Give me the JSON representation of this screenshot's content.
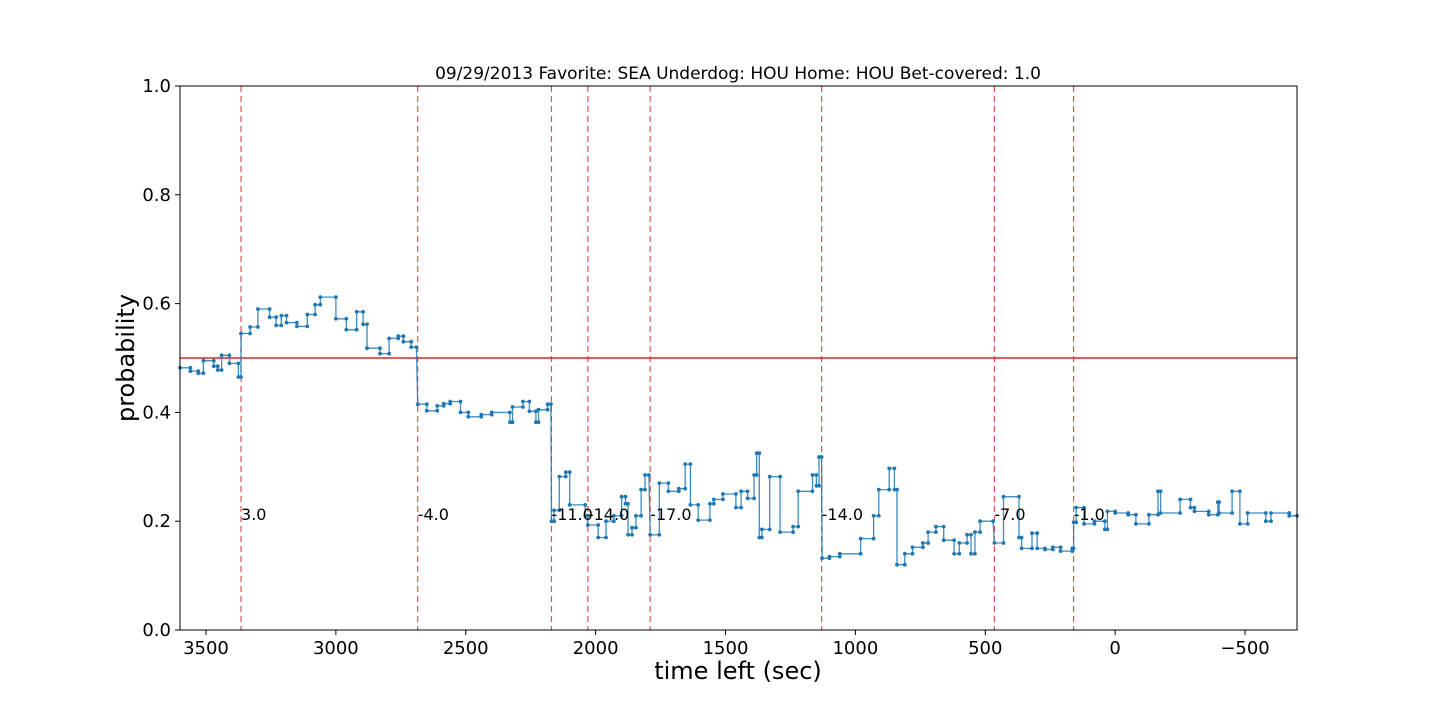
{
  "chart_data": {
    "type": "line",
    "title": "09/29/2013 Favorite: SEA Underdog: HOU Home: HOU Bet-covered: 1.0",
    "xlabel": "time left (sec)",
    "ylabel": "probability",
    "xlim": [
      3600,
      -700
    ],
    "ylim": [
      0.0,
      1.0
    ],
    "x_inverted": true,
    "xticks": [
      3500,
      3000,
      2500,
      2000,
      1500,
      1000,
      500,
      0,
      -500
    ],
    "xtick_labels": [
      "3500",
      "3000",
      "2500",
      "2000",
      "1500",
      "1000",
      "500",
      "0",
      "−500"
    ],
    "yticks": [
      0.0,
      0.2,
      0.4,
      0.6,
      0.8,
      1.0
    ],
    "ytick_labels": [
      "0.0",
      "0.2",
      "0.4",
      "0.6",
      "0.8",
      "1.0"
    ],
    "grid": false,
    "reference_line": {
      "y": 0.5,
      "color": "#d62728"
    },
    "score_events": [
      {
        "x": 3365,
        "label": "3.0"
      },
      {
        "x": 2685,
        "label": "-4.0"
      },
      {
        "x": 2170,
        "label": "-11.0"
      },
      {
        "x": 2030,
        "label": "-14.0"
      },
      {
        "x": 1790,
        "label": "-17.0"
      },
      {
        "x": 1130,
        "label": "-14.0"
      },
      {
        "x": 465,
        "label": "-7.0"
      },
      {
        "x": 160,
        "label": "-1.0"
      }
    ],
    "series": [
      {
        "color": "#1f77b4",
        "points": [
          [
            3600,
            0.482
          ],
          [
            3560,
            0.482
          ],
          [
            3560,
            0.476
          ],
          [
            3530,
            0.476
          ],
          [
            3530,
            0.472
          ],
          [
            3510,
            0.472
          ],
          [
            3510,
            0.495
          ],
          [
            3470,
            0.495
          ],
          [
            3470,
            0.485
          ],
          [
            3455,
            0.485
          ],
          [
            3455,
            0.478
          ],
          [
            3440,
            0.478
          ],
          [
            3440,
            0.505
          ],
          [
            3410,
            0.505
          ],
          [
            3410,
            0.49
          ],
          [
            3375,
            0.49
          ],
          [
            3375,
            0.465
          ],
          [
            3365,
            0.465
          ],
          [
            3365,
            0.545
          ],
          [
            3330,
            0.545
          ],
          [
            3330,
            0.557
          ],
          [
            3300,
            0.557
          ],
          [
            3300,
            0.59
          ],
          [
            3255,
            0.59
          ],
          [
            3255,
            0.575
          ],
          [
            3230,
            0.575
          ],
          [
            3230,
            0.56
          ],
          [
            3210,
            0.56
          ],
          [
            3210,
            0.578
          ],
          [
            3190,
            0.578
          ],
          [
            3190,
            0.565
          ],
          [
            3150,
            0.565
          ],
          [
            3150,
            0.558
          ],
          [
            3110,
            0.558
          ],
          [
            3110,
            0.58
          ],
          [
            3080,
            0.58
          ],
          [
            3080,
            0.598
          ],
          [
            3060,
            0.598
          ],
          [
            3060,
            0.612
          ],
          [
            3000,
            0.612
          ],
          [
            3000,
            0.572
          ],
          [
            2960,
            0.572
          ],
          [
            2960,
            0.552
          ],
          [
            2920,
            0.552
          ],
          [
            2920,
            0.585
          ],
          [
            2895,
            0.585
          ],
          [
            2895,
            0.562
          ],
          [
            2880,
            0.562
          ],
          [
            2880,
            0.518
          ],
          [
            2830,
            0.518
          ],
          [
            2830,
            0.508
          ],
          [
            2795,
            0.508
          ],
          [
            2795,
            0.536
          ],
          [
            2760,
            0.536
          ],
          [
            2760,
            0.54
          ],
          [
            2740,
            0.54
          ],
          [
            2740,
            0.53
          ],
          [
            2710,
            0.53
          ],
          [
            2710,
            0.52
          ],
          [
            2690,
            0.52
          ],
          [
            2685,
            0.415
          ],
          [
            2650,
            0.415
          ],
          [
            2650,
            0.403
          ],
          [
            2610,
            0.403
          ],
          [
            2610,
            0.412
          ],
          [
            2585,
            0.412
          ],
          [
            2585,
            0.416
          ],
          [
            2560,
            0.416
          ],
          [
            2560,
            0.42
          ],
          [
            2520,
            0.42
          ],
          [
            2520,
            0.4
          ],
          [
            2490,
            0.4
          ],
          [
            2490,
            0.392
          ],
          [
            2440,
            0.392
          ],
          [
            2440,
            0.396
          ],
          [
            2400,
            0.396
          ],
          [
            2400,
            0.4
          ],
          [
            2330,
            0.4
          ],
          [
            2330,
            0.382
          ],
          [
            2320,
            0.382
          ],
          [
            2320,
            0.41
          ],
          [
            2280,
            0.41
          ],
          [
            2280,
            0.42
          ],
          [
            2255,
            0.42
          ],
          [
            2255,
            0.402
          ],
          [
            2230,
            0.402
          ],
          [
            2230,
            0.382
          ],
          [
            2220,
            0.382
          ],
          [
            2220,
            0.405
          ],
          [
            2185,
            0.405
          ],
          [
            2185,
            0.415
          ],
          [
            2172,
            0.415
          ],
          [
            2170,
            0.2
          ],
          [
            2160,
            0.2
          ],
          [
            2160,
            0.22
          ],
          [
            2140,
            0.22
          ],
          [
            2140,
            0.282
          ],
          [
            2115,
            0.282
          ],
          [
            2115,
            0.29
          ],
          [
            2100,
            0.29
          ],
          [
            2100,
            0.23
          ],
          [
            2040,
            0.23
          ],
          [
            2040,
            0.21
          ],
          [
            2030,
            0.21
          ],
          [
            2030,
            0.193
          ],
          [
            1990,
            0.193
          ],
          [
            1990,
            0.17
          ],
          [
            1960,
            0.17
          ],
          [
            1960,
            0.2
          ],
          [
            1930,
            0.2
          ],
          [
            1930,
            0.21
          ],
          [
            1900,
            0.21
          ],
          [
            1900,
            0.245
          ],
          [
            1885,
            0.245
          ],
          [
            1885,
            0.232
          ],
          [
            1875,
            0.232
          ],
          [
            1875,
            0.175
          ],
          [
            1860,
            0.175
          ],
          [
            1860,
            0.188
          ],
          [
            1845,
            0.188
          ],
          [
            1845,
            0.21
          ],
          [
            1825,
            0.21
          ],
          [
            1825,
            0.258
          ],
          [
            1810,
            0.258
          ],
          [
            1810,
            0.285
          ],
          [
            1795,
            0.285
          ],
          [
            1790,
            0.175
          ],
          [
            1755,
            0.175
          ],
          [
            1755,
            0.27
          ],
          [
            1720,
            0.27
          ],
          [
            1720,
            0.255
          ],
          [
            1680,
            0.255
          ],
          [
            1680,
            0.26
          ],
          [
            1655,
            0.26
          ],
          [
            1655,
            0.305
          ],
          [
            1635,
            0.305
          ],
          [
            1635,
            0.23
          ],
          [
            1605,
            0.23
          ],
          [
            1605,
            0.202
          ],
          [
            1560,
            0.202
          ],
          [
            1560,
            0.232
          ],
          [
            1545,
            0.232
          ],
          [
            1545,
            0.24
          ],
          [
            1510,
            0.24
          ],
          [
            1510,
            0.25
          ],
          [
            1460,
            0.25
          ],
          [
            1460,
            0.225
          ],
          [
            1440,
            0.225
          ],
          [
            1440,
            0.255
          ],
          [
            1415,
            0.255
          ],
          [
            1415,
            0.242
          ],
          [
            1390,
            0.242
          ],
          [
            1390,
            0.285
          ],
          [
            1380,
            0.285
          ],
          [
            1380,
            0.325
          ],
          [
            1370,
            0.325
          ],
          [
            1370,
            0.17
          ],
          [
            1360,
            0.17
          ],
          [
            1360,
            0.185
          ],
          [
            1330,
            0.185
          ],
          [
            1330,
            0.282
          ],
          [
            1290,
            0.282
          ],
          [
            1290,
            0.18
          ],
          [
            1240,
            0.18
          ],
          [
            1240,
            0.19
          ],
          [
            1220,
            0.19
          ],
          [
            1220,
            0.255
          ],
          [
            1165,
            0.255
          ],
          [
            1165,
            0.285
          ],
          [
            1150,
            0.285
          ],
          [
            1150,
            0.265
          ],
          [
            1140,
            0.265
          ],
          [
            1140,
            0.318
          ],
          [
            1130,
            0.318
          ],
          [
            1128,
            0.132
          ],
          [
            1100,
            0.132
          ],
          [
            1100,
            0.135
          ],
          [
            1060,
            0.135
          ],
          [
            1060,
            0.14
          ],
          [
            980,
            0.14
          ],
          [
            980,
            0.168
          ],
          [
            930,
            0.168
          ],
          [
            930,
            0.21
          ],
          [
            910,
            0.21
          ],
          [
            910,
            0.258
          ],
          [
            870,
            0.258
          ],
          [
            870,
            0.297
          ],
          [
            850,
            0.297
          ],
          [
            850,
            0.258
          ],
          [
            840,
            0.258
          ],
          [
            840,
            0.12
          ],
          [
            810,
            0.12
          ],
          [
            810,
            0.14
          ],
          [
            780,
            0.14
          ],
          [
            780,
            0.152
          ],
          [
            740,
            0.152
          ],
          [
            740,
            0.16
          ],
          [
            720,
            0.16
          ],
          [
            720,
            0.18
          ],
          [
            690,
            0.18
          ],
          [
            690,
            0.19
          ],
          [
            660,
            0.19
          ],
          [
            660,
            0.165
          ],
          [
            620,
            0.165
          ],
          [
            620,
            0.14
          ],
          [
            600,
            0.14
          ],
          [
            600,
            0.16
          ],
          [
            570,
            0.16
          ],
          [
            570,
            0.175
          ],
          [
            555,
            0.175
          ],
          [
            555,
            0.14
          ],
          [
            540,
            0.14
          ],
          [
            540,
            0.18
          ],
          [
            520,
            0.18
          ],
          [
            520,
            0.2
          ],
          [
            470,
            0.2
          ],
          [
            465,
            0.16
          ],
          [
            430,
            0.16
          ],
          [
            430,
            0.245
          ],
          [
            370,
            0.245
          ],
          [
            370,
            0.17
          ],
          [
            360,
            0.17
          ],
          [
            360,
            0.15
          ],
          [
            320,
            0.15
          ],
          [
            320,
            0.178
          ],
          [
            300,
            0.178
          ],
          [
            300,
            0.15
          ],
          [
            270,
            0.15
          ],
          [
            270,
            0.148
          ],
          [
            240,
            0.148
          ],
          [
            240,
            0.152
          ],
          [
            210,
            0.152
          ],
          [
            210,
            0.145
          ],
          [
            165,
            0.145
          ],
          [
            165,
            0.15
          ],
          [
            160,
            0.15
          ],
          [
            160,
            0.198
          ],
          [
            150,
            0.198
          ],
          [
            150,
            0.225
          ],
          [
            120,
            0.225
          ],
          [
            120,
            0.195
          ],
          [
            80,
            0.195
          ],
          [
            80,
            0.2
          ],
          [
            40,
            0.2
          ],
          [
            40,
            0.185
          ],
          [
            30,
            0.185
          ],
          [
            30,
            0.218
          ],
          [
            0,
            0.218
          ],
          [
            0,
            0.215
          ],
          [
            -50,
            0.215
          ],
          [
            -50,
            0.212
          ],
          [
            -80,
            0.212
          ],
          [
            -80,
            0.195
          ],
          [
            -130,
            0.195
          ],
          [
            -130,
            0.212
          ],
          [
            -165,
            0.212
          ],
          [
            -165,
            0.255
          ],
          [
            -175,
            0.255
          ],
          [
            -175,
            0.215
          ],
          [
            -250,
            0.215
          ],
          [
            -250,
            0.24
          ],
          [
            -290,
            0.24
          ],
          [
            -290,
            0.225
          ],
          [
            -305,
            0.225
          ],
          [
            -305,
            0.218
          ],
          [
            -360,
            0.218
          ],
          [
            -360,
            0.212
          ],
          [
            -395,
            0.212
          ],
          [
            -395,
            0.235
          ],
          [
            -400,
            0.235
          ],
          [
            -400,
            0.215
          ],
          [
            -450,
            0.215
          ],
          [
            -450,
            0.255
          ],
          [
            -480,
            0.255
          ],
          [
            -480,
            0.195
          ],
          [
            -510,
            0.195
          ],
          [
            -510,
            0.215
          ],
          [
            -580,
            0.215
          ],
          [
            -580,
            0.2
          ],
          [
            -600,
            0.2
          ],
          [
            -600,
            0.215
          ],
          [
            -670,
            0.215
          ],
          [
            -670,
            0.21
          ],
          [
            -700,
            0.21
          ]
        ]
      }
    ]
  }
}
